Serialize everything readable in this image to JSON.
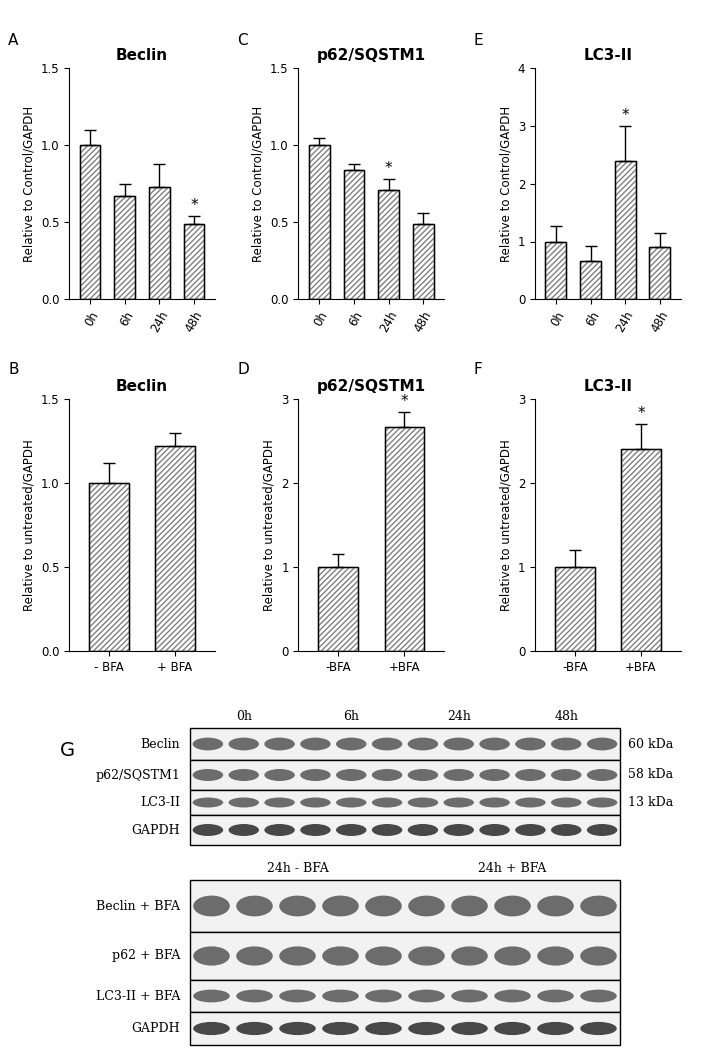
{
  "chart_data": [
    {
      "type": "bar",
      "panel": "A",
      "title": "Beclin",
      "ylabel": "Relative to Control/GAPDH",
      "categories": [
        "0h",
        "6h",
        "24h",
        "48h"
      ],
      "values": [
        1.0,
        0.67,
        0.73,
        0.49
      ],
      "errors": [
        0.1,
        0.08,
        0.15,
        0.05
      ],
      "color": "#808080",
      "ylim": [
        0,
        1.5
      ],
      "yticks": [
        {
          "value": 0,
          "label": "0.0"
        },
        {
          "value": 0.5,
          "label": "0.5"
        },
        {
          "value": 1,
          "label": "1.0"
        },
        {
          "value": 1.5,
          "label": "1.5"
        }
      ],
      "annotations": [
        {
          "category": "48h",
          "text": "*"
        }
      ]
    },
    {
      "type": "bar",
      "panel": "B",
      "title": "Beclin",
      "ylabel": "Relative to untreated/GAPDH",
      "categories": [
        "- BFA",
        "+ BFA"
      ],
      "values": [
        1.0,
        1.22
      ],
      "errors": [
        0.12,
        0.08
      ],
      "color": "#808080",
      "ylim": [
        0,
        1.5
      ],
      "yticks": [
        {
          "value": 0,
          "label": "0.0"
        },
        {
          "value": 0.5,
          "label": "0.5"
        },
        {
          "value": 1,
          "label": "1.0"
        },
        {
          "value": 1.5,
          "label": "1.5"
        }
      ],
      "annotations": []
    },
    {
      "type": "bar",
      "panel": "C",
      "title": "p62/SQSTM1",
      "ylabel": "Relative to Control/GAPDH",
      "categories": [
        "0h",
        "6h",
        "24h",
        "48h"
      ],
      "values": [
        1.0,
        0.84,
        0.71,
        0.49
      ],
      "errors": [
        0.05,
        0.04,
        0.07,
        0.07
      ],
      "color": "#808080",
      "ylim": [
        0,
        1.5
      ],
      "yticks": [
        {
          "value": 0,
          "label": "0.0"
        },
        {
          "value": 0.5,
          "label": "0.5"
        },
        {
          "value": 1,
          "label": "1.0"
        },
        {
          "value": 1.5,
          "label": "1.5"
        }
      ],
      "annotations": [
        {
          "category": "24h",
          "text": "*"
        }
      ]
    },
    {
      "type": "bar",
      "panel": "D",
      "title": "p62/SQSTM1",
      "ylabel": "Relative to untreated/GAPDH",
      "categories": [
        "-BFA",
        "+BFA"
      ],
      "values": [
        1.0,
        2.67
      ],
      "errors": [
        0.16,
        0.18
      ],
      "color": "#808080",
      "ylim": [
        0,
        3
      ],
      "yticks": [
        0,
        1,
        2,
        3
      ],
      "annotations": [
        {
          "category": "+BFA",
          "text": "*"
        }
      ]
    },
    {
      "type": "bar",
      "panel": "E",
      "title": "LC3-II",
      "ylabel": "Relative to Control/GAPDH",
      "categories": [
        "0h",
        "6h",
        "24h",
        "48h"
      ],
      "values": [
        1.0,
        0.67,
        2.4,
        0.9
      ],
      "errors": [
        0.27,
        0.25,
        0.6,
        0.25
      ],
      "color": "#808080",
      "ylim": [
        0,
        4
      ],
      "yticks": [
        0,
        1,
        2,
        3,
        4
      ],
      "annotations": [
        {
          "category": "24h",
          "text": "*"
        }
      ]
    },
    {
      "type": "bar",
      "panel": "F",
      "title": "LC3-II",
      "ylabel": "Relative to untreated/GAPDH",
      "categories": [
        "-BFA",
        "+BFA"
      ],
      "values": [
        1.0,
        2.4
      ],
      "errors": [
        0.2,
        0.3
      ],
      "color": "#808080",
      "ylim": [
        0,
        3
      ],
      "yticks": [
        0,
        1,
        2,
        3
      ],
      "annotations": [
        {
          "category": "+BFA",
          "text": "*"
        }
      ]
    }
  ],
  "blot": {
    "panel": "G",
    "blocks": [
      {
        "lane_groups": [
          {
            "label": "0h",
            "lanes": 3
          },
          {
            "label": "6h",
            "lanes": 3
          },
          {
            "label": "24h",
            "lanes": 3
          },
          {
            "label": "48h",
            "lanes": 3
          }
        ],
        "rows": [
          {
            "label": "Beclin",
            "size": "60 kDa"
          },
          {
            "label": "p62/SQSTM1",
            "size": "58 kDa"
          },
          {
            "label": "LC3-II",
            "size": "13 kDa"
          },
          {
            "label": "GAPDH"
          }
        ]
      },
      {
        "lane_groups": [
          {
            "label": "24h - BFA",
            "lanes": 5
          },
          {
            "label": "24h + BFA",
            "lanes": 5
          }
        ],
        "rows": [
          {
            "label": "Beclin + BFA"
          },
          {
            "label": "p62 + BFA"
          },
          {
            "label": "LC3-II + BFA"
          },
          {
            "label": "GAPDH"
          }
        ]
      }
    ]
  }
}
